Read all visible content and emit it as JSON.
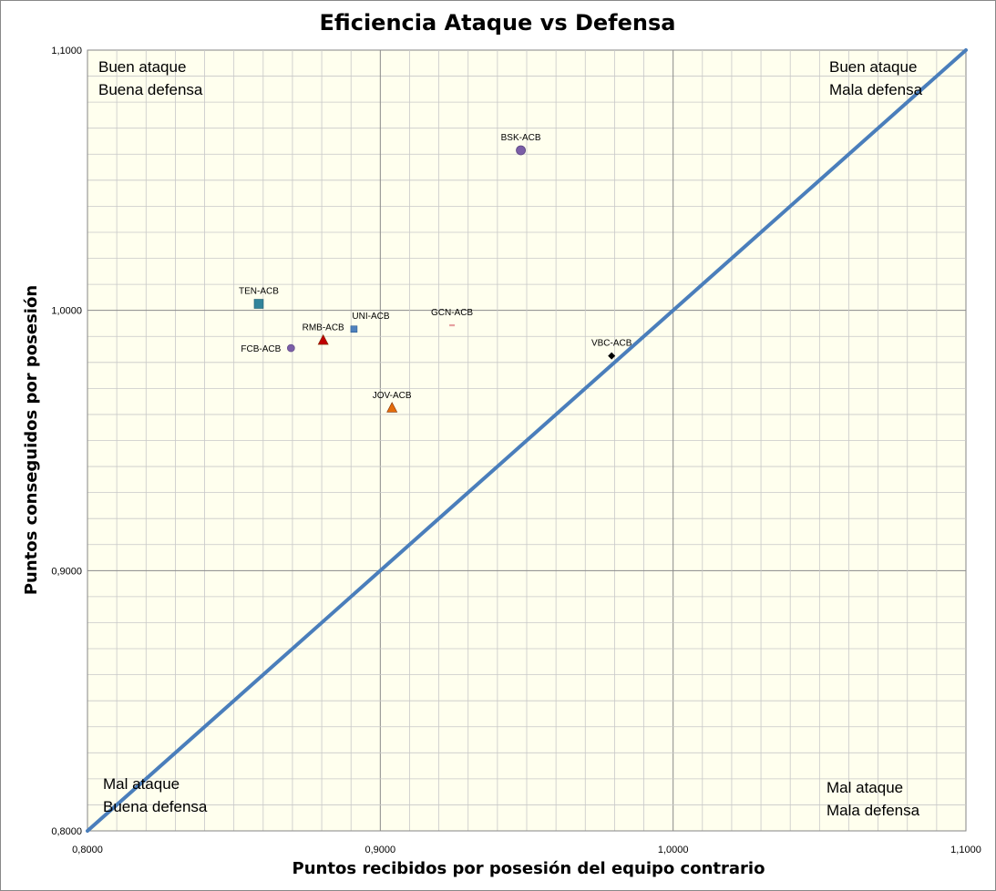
{
  "chart_data": {
    "type": "scatter",
    "title": "Eficiencia Ataque vs Defensa",
    "xlabel": "Puntos recibidos por posesión del equipo contrario",
    "ylabel": "Puntos conseguidos por posesión",
    "xlim": [
      0.8,
      1.1
    ],
    "ylim": [
      0.8,
      1.1
    ],
    "x_ticks": [
      "0,8000",
      "0,9000",
      "1,0000",
      "1,1000"
    ],
    "y_ticks": [
      "0,8000",
      "0,9000",
      "1,0000",
      "1,1000"
    ],
    "grid": true,
    "reference_line": {
      "from": [
        0.8,
        0.8
      ],
      "to": [
        1.1,
        1.1
      ],
      "color": "#4a7ebb"
    },
    "quadrants": {
      "top_left": [
        "Buen ataque",
        "Buena defensa"
      ],
      "top_right": [
        "Buen ataque",
        "Mala defensa"
      ],
      "bottom_left": [
        "Mal ataque",
        "Buena defensa"
      ],
      "bottom_right": [
        "Mal ataque",
        "Mala defensa"
      ]
    },
    "points": [
      {
        "label": "BSK-ACB",
        "x": 0.948,
        "y": 1.0615,
        "marker": "circle",
        "color": "#7b5ea7",
        "label_pos": "above"
      },
      {
        "label": "TEN-ACB",
        "x": 0.8585,
        "y": 1.0025,
        "marker": "square",
        "color": "#31849b",
        "label_pos": "above"
      },
      {
        "label": "UNI-ACB",
        "x": 0.891,
        "y": 0.9928,
        "marker": "square-small",
        "color": "#4f81bd",
        "label_pos": "above-right"
      },
      {
        "label": "GCN-ACB",
        "x": 0.9245,
        "y": 0.9943,
        "marker": "dash",
        "color": "#e6a0a0",
        "label_pos": "above"
      },
      {
        "label": "RMB-ACB",
        "x": 0.8805,
        "y": 0.9885,
        "marker": "triangle",
        "color": "#c00000",
        "label_pos": "above"
      },
      {
        "label": "FCB-ACB",
        "x": 0.8695,
        "y": 0.9855,
        "marker": "circle-small",
        "color": "#7b5ea7",
        "label_pos": "left"
      },
      {
        "label": "VBC-ACB",
        "x": 0.979,
        "y": 0.9825,
        "marker": "diamond",
        "color": "#000000",
        "label_pos": "above"
      },
      {
        "label": "JOV-ACB",
        "x": 0.904,
        "y": 0.9625,
        "marker": "triangle",
        "color": "#e46c0a",
        "label_pos": "above"
      }
    ]
  }
}
